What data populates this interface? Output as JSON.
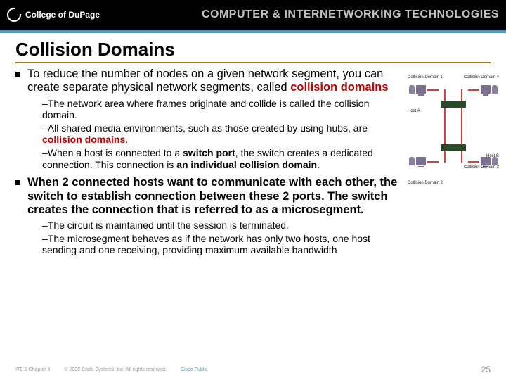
{
  "header": {
    "college": "College of DuPage",
    "course_title": "COMPUTER & INTERNETWORKING TECHNOLOGIES",
    "underline_color": "#5a97b5"
  },
  "slide": {
    "title": "Collision Domains",
    "title_underline_color": "#af7817",
    "bullets": [
      {
        "pre": "To reduce the number of nodes on a given network segment, you can create separate physical network segments, called ",
        "em": "collision domains",
        "em_class": "bold-red",
        "post": "",
        "subs": [
          {
            "pre": "–The network area where frames originate and collide is called the collision domain.",
            "em": "",
            "post": ""
          },
          {
            "pre": "–All shared media environments, such as those created by using hubs, are ",
            "em": "collision domains",
            "em_class": "bold-red",
            "post": "."
          },
          {
            "pre": "–When a host is connected to a ",
            "em": "switch port",
            "em_class": "bold",
            "post": ", the switch creates a dedicated connection. This connection is ",
            "em2": "an individual collision domain",
            "em2_class": "bold",
            "post2": "."
          }
        ]
      },
      {
        "pre": "When 2 connected hosts want to communicate with each other, the switch to establish connection between these 2 ports. The switch creates the connection that is referred to as a ",
        "em": "microsegment",
        "em_class": "bold",
        "post": ".",
        "bold_all": true,
        "subs": [
          {
            "pre": "–The circuit is maintained until the session is terminated.",
            "em": "",
            "post": ""
          },
          {
            "pre": "–The microsegment behaves as if the network has only two hosts, one host sending and one receiving, providing maximum available bandwidth",
            "em": "",
            "post": ""
          }
        ]
      }
    ]
  },
  "diagram": {
    "labels": {
      "cd1": "Collision Domain 1",
      "cd4": "Collision Domain 4",
      "hostA": "Host A",
      "hostB": "Host B",
      "cd2": "Collision Domain 2",
      "cd3": "Collision Domain 3"
    },
    "colors": {
      "pc": "#7a6f8f",
      "hub": "#2a4a2a",
      "wire": "#d04040"
    }
  },
  "footer": {
    "chapter": "ITE 1 Chapter 6",
    "copyright": "© 2006 Cisco Systems, Inc. All rights reserved.",
    "public": "Cisco Public",
    "page": "25"
  }
}
